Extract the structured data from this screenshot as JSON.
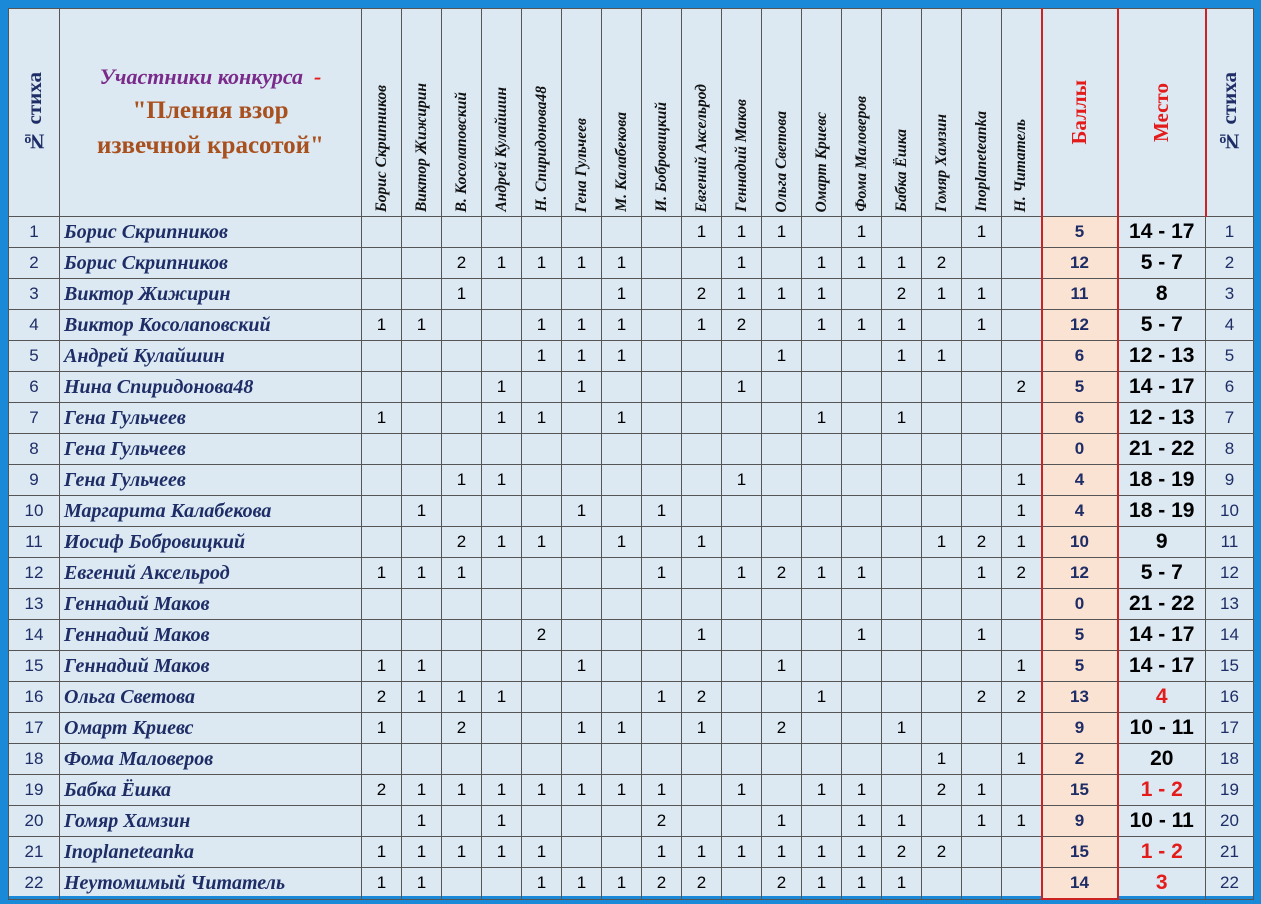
{
  "header": {
    "num_label": "№ стиха",
    "title_line1": "Участники конкурса",
    "title_dash": "-",
    "title_line2": "\"Пленяя взор",
    "title_line3": "извечной красотой\"",
    "judges": [
      "Борис Скрипников",
      "Виктор Жижирин",
      "В. Косолаповский",
      "Андрей Кулайшин",
      "Н. Спиридонова48",
      "Гена Гульчеев",
      "М. Калабекова",
      "И. Бобровицкий",
      "Евгений Аксельрод",
      "Геннадий Маков",
      "Ольга Светова",
      "Омарт Криевс",
      "Фома Маловеров",
      "Бабка Ёшка",
      "Гомяр Хамзин",
      "Inoplaneteanka",
      "Н. Читатель"
    ],
    "score_label": "Баллы",
    "place_label": "Место",
    "num_label_right": "№ стиха"
  },
  "rows": [
    {
      "num": "1",
      "name": "Борис Скрипников",
      "votes": [
        "",
        "",
        "",
        "",
        "",
        "",
        "",
        "",
        "1",
        "1",
        "1",
        "",
        "1",
        "",
        "",
        "1",
        ""
      ],
      "score": "5",
      "place": "14 - 17",
      "top": false
    },
    {
      "num": "2",
      "name": "Борис Скрипников",
      "votes": [
        "",
        "",
        "2",
        "1",
        "1",
        "1",
        "1",
        "",
        "",
        "1",
        "",
        "1",
        "1",
        "1",
        "2",
        "",
        ""
      ],
      "score": "12",
      "place": "5 - 7",
      "top": false
    },
    {
      "num": "3",
      "name": "Виктор Жижирин",
      "votes": [
        "",
        "",
        "1",
        "",
        "",
        "",
        "1",
        "",
        "2",
        "1",
        "1",
        "1",
        "",
        "2",
        "1",
        "1",
        ""
      ],
      "score": "11",
      "place": "8",
      "top": false
    },
    {
      "num": "4",
      "name": "Виктор Косолаповский",
      "votes": [
        "1",
        "1",
        "",
        "",
        "1",
        "1",
        "1",
        "",
        "1",
        "2",
        "",
        "1",
        "1",
        "1",
        "",
        "1",
        ""
      ],
      "score": "12",
      "place": "5 - 7",
      "top": false
    },
    {
      "num": "5",
      "name": "Андрей Кулайшин",
      "votes": [
        "",
        "",
        "",
        "",
        "1",
        "1",
        "1",
        "",
        "",
        "",
        "1",
        "",
        "",
        "1",
        "1",
        "",
        ""
      ],
      "score": "6",
      "place": "12 - 13",
      "top": false
    },
    {
      "num": "6",
      "name": "Нина Спиридонова48",
      "votes": [
        "",
        "",
        "",
        "1",
        "",
        "1",
        "",
        "",
        "",
        "1",
        "",
        "",
        "",
        "",
        "",
        "",
        "2"
      ],
      "score": "5",
      "place": "14 - 17",
      "top": false
    },
    {
      "num": "7",
      "name": "Гена Гульчеев",
      "votes": [
        "1",
        "",
        "",
        "1",
        "1",
        "",
        "1",
        "",
        "",
        "",
        "",
        "1",
        "",
        "1",
        "",
        "",
        ""
      ],
      "score": "6",
      "place": "12 - 13",
      "top": false
    },
    {
      "num": "8",
      "name": "Гена Гульчеев",
      "votes": [
        "",
        "",
        "",
        "",
        "",
        "",
        "",
        "",
        "",
        "",
        "",
        "",
        "",
        "",
        "",
        "",
        ""
      ],
      "score": "0",
      "place": "21 - 22",
      "top": false
    },
    {
      "num": "9",
      "name": "Гена Гульчеев",
      "votes": [
        "",
        "",
        "1",
        "1",
        "",
        "",
        "",
        "",
        "",
        "1",
        "",
        "",
        "",
        "",
        "",
        "",
        "1"
      ],
      "score": "4",
      "place": "18 - 19",
      "top": false
    },
    {
      "num": "10",
      "name": "Маргарита Калабекова",
      "votes": [
        "",
        "1",
        "",
        "",
        "",
        "1",
        "",
        "1",
        "",
        "",
        "",
        "",
        "",
        "",
        "",
        "",
        "1"
      ],
      "score": "4",
      "place": "18 - 19",
      "top": false
    },
    {
      "num": "11",
      "name": "Иосиф Бобровицкий",
      "votes": [
        "",
        "",
        "2",
        "1",
        "1",
        "",
        "1",
        "",
        "1",
        "",
        "",
        "",
        "",
        "",
        "1",
        "2",
        "1"
      ],
      "score": "10",
      "place": "9",
      "top": false
    },
    {
      "num": "12",
      "name": "Евгений Аксельрод",
      "votes": [
        "1",
        "1",
        "1",
        "",
        "",
        "",
        "",
        "1",
        "",
        "1",
        "2",
        "1",
        "1",
        "",
        "",
        "1",
        "2"
      ],
      "score": "12",
      "place": "5 - 7",
      "top": false
    },
    {
      "num": "13",
      "name": "Геннадий Маков",
      "votes": [
        "",
        "",
        "",
        "",
        "",
        "",
        "",
        "",
        "",
        "",
        "",
        "",
        "",
        "",
        "",
        "",
        ""
      ],
      "score": "0",
      "place": "21 - 22",
      "top": false
    },
    {
      "num": "14",
      "name": "Геннадий Маков",
      "votes": [
        "",
        "",
        "",
        "",
        "2",
        "",
        "",
        "",
        "1",
        "",
        "",
        "",
        "1",
        "",
        "",
        "1",
        ""
      ],
      "score": "5",
      "place": "14 - 17",
      "top": false
    },
    {
      "num": "15",
      "name": "Геннадий Маков",
      "votes": [
        "1",
        "1",
        "",
        "",
        "",
        "1",
        "",
        "",
        "",
        "",
        "1",
        "",
        "",
        "",
        "",
        "",
        "1"
      ],
      "score": "5",
      "place": "14 - 17",
      "top": false
    },
    {
      "num": "16",
      "name": "Ольга Светова",
      "votes": [
        "2",
        "1",
        "1",
        "1",
        "",
        "",
        "",
        "1",
        "2",
        "",
        "",
        "1",
        "",
        "",
        "",
        "2",
        "2"
      ],
      "score": "13",
      "place": "4",
      "top": true
    },
    {
      "num": "17",
      "name": "Омарт Криевс",
      "votes": [
        "1",
        "",
        "2",
        "",
        "",
        "1",
        "1",
        "",
        "1",
        "",
        "2",
        "",
        "",
        "1",
        "",
        "",
        ""
      ],
      "score": "9",
      "place": "10 - 11",
      "top": false
    },
    {
      "num": "18",
      "name": "Фома Маловеров",
      "votes": [
        "",
        "",
        "",
        "",
        "",
        "",
        "",
        "",
        "",
        "",
        "",
        "",
        "",
        "",
        "1",
        "",
        "1"
      ],
      "score": "2",
      "place": "20",
      "top": false
    },
    {
      "num": "19",
      "name": "Бабка Ёшка",
      "votes": [
        "2",
        "1",
        "1",
        "1",
        "1",
        "1",
        "1",
        "1",
        "",
        "1",
        "",
        "1",
        "1",
        "",
        "2",
        "1",
        ""
      ],
      "score": "15",
      "place": "1 - 2",
      "top": true
    },
    {
      "num": "20",
      "name": "Гомяр Хамзин",
      "votes": [
        "",
        "1",
        "",
        "1",
        "",
        "",
        "",
        "2",
        "",
        "",
        "1",
        "",
        "1",
        "1",
        "",
        "1",
        "1"
      ],
      "score": "9",
      "place": "10 - 11",
      "top": false
    },
    {
      "num": "21",
      "name": "Inoplaneteanka",
      "votes": [
        "1",
        "1",
        "1",
        "1",
        "1",
        "",
        "",
        "1",
        "1",
        "1",
        "1",
        "1",
        "1",
        "2",
        "2",
        "",
        ""
      ],
      "score": "15",
      "place": "1 - 2",
      "top": true
    },
    {
      "num": "22",
      "name": "Неутомимый Читатель",
      "votes": [
        "1",
        "1",
        "",
        "",
        "1",
        "1",
        "1",
        "2",
        "2",
        "",
        "2",
        "1",
        "1",
        "1",
        "",
        "",
        ""
      ],
      "score": "14",
      "place": "3",
      "top": true
    }
  ]
}
